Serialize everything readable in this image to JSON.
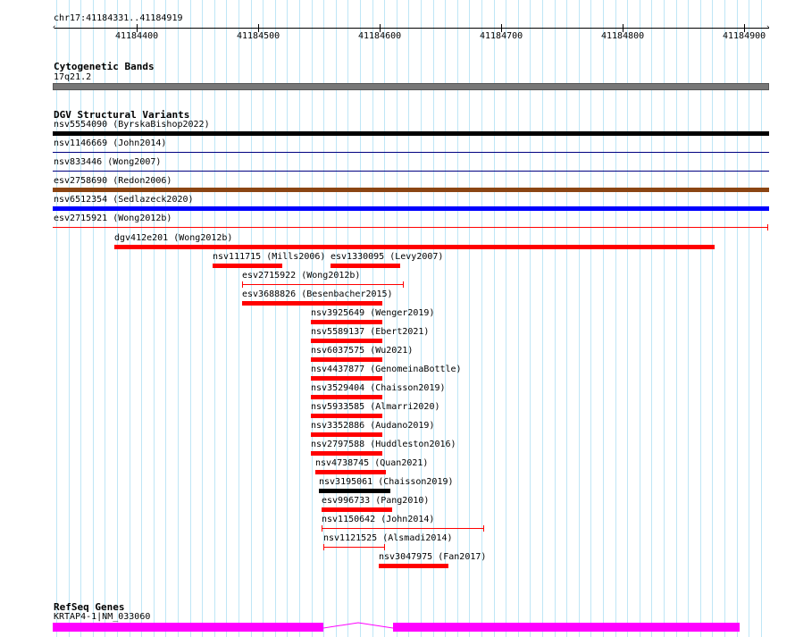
{
  "ruler": {
    "region_label": "chr17:41184331..41184919",
    "ticks": [
      "41184400",
      "41184500",
      "41184600",
      "41184700",
      "41184800",
      "41184900"
    ]
  },
  "cytobands": {
    "title": "Cytogenetic Bands",
    "band_label": "17q21.2",
    "band_color": "#777777"
  },
  "dgv": {
    "title": "DGV Structural Variants",
    "full_width_variants": [
      {
        "label": "nsv5554090 (ByrskaBishop2022)",
        "color": "#000000",
        "style": "thick"
      },
      {
        "label": "nsv1146669 (John2014)",
        "color": "#000080",
        "style": "thin"
      },
      {
        "label": "nsv833446 (Wong2007)",
        "color": "#000080",
        "style": "thin"
      },
      {
        "label": "esv2758690 (Redon2006)",
        "color": "#8b4513",
        "style": "thick"
      },
      {
        "label": "nsv6512354 (Sedlazeck2020)",
        "color": "#0000ff",
        "style": "thick"
      },
      {
        "label": "esv2715921 (Wong2012b)",
        "color": "#ff0000",
        "style": "thin-endcap"
      }
    ],
    "variants": [
      {
        "label": "dgv412e201 (Wong2012b)",
        "color": "#ff0000",
        "style": "thick"
      },
      {
        "label": "nsv111715 (Mills2006)",
        "color": "#ff0000",
        "style": "thick"
      },
      {
        "label": "esv1330095 (Levy2007)",
        "color": "#ff0000",
        "style": "thick"
      },
      {
        "label": "esv2715922 (Wong2012b)",
        "color": "#ff0000",
        "style": "thin-endcap"
      },
      {
        "label": "esv3688826 (Besenbacher2015)",
        "color": "#ff0000",
        "style": "thick"
      },
      {
        "label": "nsv3925649 (Wenger2019)",
        "color": "#ff0000",
        "style": "thick"
      },
      {
        "label": "nsv5589137 (Ebert2021)",
        "color": "#ff0000",
        "style": "thick"
      },
      {
        "label": "nsv6037575 (Wu2021)",
        "color": "#ff0000",
        "style": "thick"
      },
      {
        "label": "nsv4437877 (GenomeinaBottle)",
        "color": "#ff0000",
        "style": "thick"
      },
      {
        "label": "nsv3529404 (Chaisson2019)",
        "color": "#ff0000",
        "style": "thick"
      },
      {
        "label": "nsv5933585 (Almarri2020)",
        "color": "#ff0000",
        "style": "thick"
      },
      {
        "label": "nsv3352886 (Audano2019)",
        "color": "#ff0000",
        "style": "thick"
      },
      {
        "label": "nsv2797588 (Huddleston2016)",
        "color": "#ff0000",
        "style": "thick"
      },
      {
        "label": "nsv4738745 (Quan2021)",
        "color": "#ff0000",
        "style": "thick"
      },
      {
        "label": "nsv3195061 (Chaisson2019)",
        "color": "#000000",
        "style": "thick"
      },
      {
        "label": "esv996733 (Pang2010)",
        "color": "#ff0000",
        "style": "thick"
      },
      {
        "label": "nsv1150642 (John2014)",
        "color": "#ff0000",
        "style": "thin-endcap"
      },
      {
        "label": "nsv1121525 (Alsmadi2014)",
        "color": "#ff0000",
        "style": "thin-endcap"
      },
      {
        "label": "nsv3047975 (Fan2017)",
        "color": "#ff0000",
        "style": "thick"
      }
    ]
  },
  "refseq": {
    "title": "RefSeq Genes",
    "gene_label": "KRTAP4-1|NM_033060",
    "color": "#ff00ff"
  }
}
